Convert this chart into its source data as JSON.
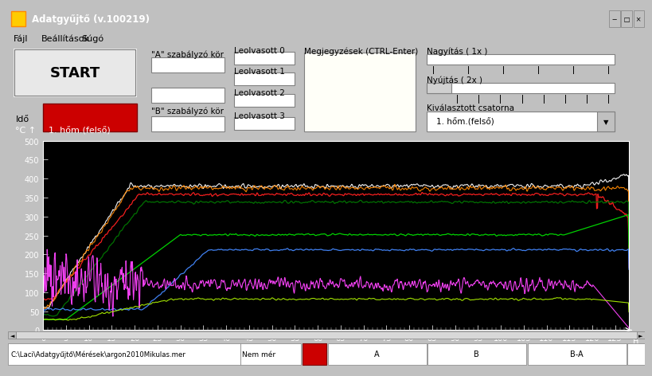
{
  "title_bar": "Adatgyűjtő (v.100219)",
  "menu_items": [
    "Fájl",
    "Beállítások",
    "Súgó"
  ],
  "start_button": "START",
  "ido_label": "Idő",
  "a_szabalyzo": "\"A\" szabályzó kör",
  "b_szabalyzo": "\"B\" szabályzó kör",
  "leolvasott": [
    "Leolvasott 0",
    "Leolvasott 1",
    "Leolvasott 2",
    "Leolvasott 3"
  ],
  "megjegyzesek": "Megjegyzések (CTRL-Enter)",
  "nagyitas": "Nagyítás ( 1x )",
  "nyujtas": "Nyújtás ( 2x )",
  "kivalasztott": "Kiválasztott csatorna",
  "channel_selected": "1. hőm.(felső)",
  "chart_ylabel": "°C",
  "chart_label": "1. hőm.(felső)",
  "ymin": 0.0,
  "ymax": 500.0,
  "yticks": [
    0.0,
    50.0,
    100.0,
    150.0,
    200.0,
    250.0,
    300.0,
    350.0,
    400.0,
    450.0,
    500.0
  ],
  "xmin": 0,
  "xmax": 128,
  "xticks": [
    0,
    5,
    10,
    15,
    20,
    25,
    30,
    35,
    40,
    45,
    50,
    55,
    60,
    65,
    70,
    75,
    80,
    85,
    90,
    95,
    100,
    105,
    110,
    115,
    120,
    125
  ],
  "bg_color": "#c0c0c0",
  "chart_bg": "#000000",
  "title_bar_color": "#000080",
  "title_bar_text_color": "#ffffff",
  "status_bar_file": "C:\\Laci\\Adatgyűjtő\\Mérések\\argon2010Mikulas.mer",
  "status_nem_mer": "Nem mér",
  "status_a": "A",
  "status_b": "B",
  "status_ba": "B-A",
  "seed": 42
}
